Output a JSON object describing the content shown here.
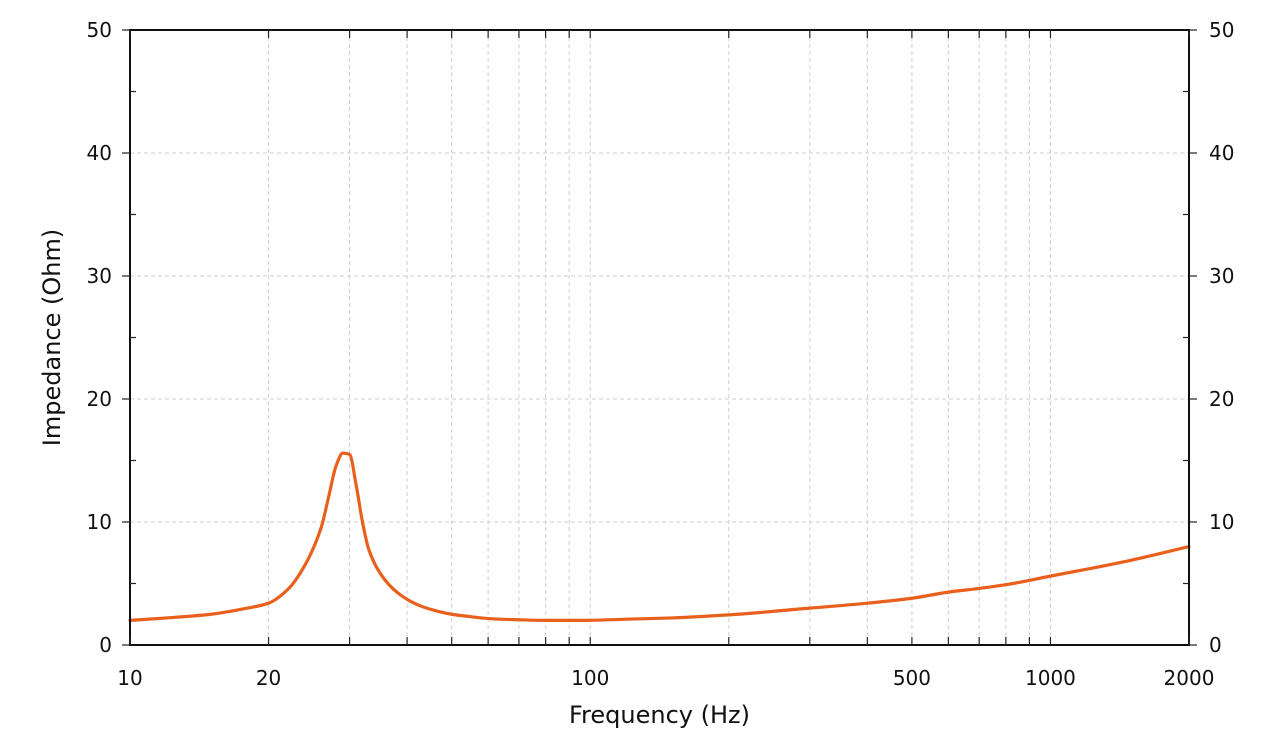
{
  "chart_data": {
    "type": "line",
    "title": "",
    "xlabel": "Frequency (Hz)",
    "ylabel": "Impedance (Ohm)",
    "x_scale": "log",
    "xlim": [
      10,
      2000
    ],
    "ylim": [
      0,
      50
    ],
    "grid": true,
    "x_tick_labels": [
      {
        "value": 10,
        "label": "10"
      },
      {
        "value": 20,
        "label": "20"
      },
      {
        "value": 100,
        "label": "100"
      },
      {
        "value": 500,
        "label": "500"
      },
      {
        "value": 1000,
        "label": "1000"
      },
      {
        "value": 2000,
        "label": "2000"
      }
    ],
    "x_minor_grid": [
      30,
      40,
      50,
      60,
      70,
      80,
      90,
      200,
      300,
      400,
      600,
      700,
      800,
      900
    ],
    "y_ticks": [
      0,
      10,
      20,
      30,
      40,
      50
    ],
    "y_tick_labels": [
      "0",
      "10",
      "20",
      "30",
      "40",
      "50"
    ],
    "y_minor_ticks": [
      5,
      15,
      25,
      35,
      45
    ],
    "series": [
      {
        "color": "#e8601c",
        "x": [
          10,
          12,
          15,
          18,
          20,
          22,
          24,
          26,
          27,
          28,
          29,
          30,
          31,
          32,
          33,
          35,
          38,
          42,
          46,
          50,
          55,
          60,
          70,
          80,
          95,
          120,
          150,
          200,
          300,
          400,
          500,
          600,
          700,
          800,
          1000,
          1500,
          2000
        ],
        "y": [
          2.0,
          2.2,
          2.5,
          3.0,
          3.4,
          4.5,
          6.5,
          9.5,
          12.0,
          14.5,
          15.6,
          15.5,
          13.0,
          10.0,
          7.8,
          5.8,
          4.3,
          3.3,
          2.8,
          2.5,
          2.3,
          2.15,
          2.05,
          2.0,
          2.0,
          2.1,
          2.2,
          2.45,
          3.0,
          3.4,
          3.8,
          4.3,
          4.6,
          4.9,
          5.6,
          6.9,
          8.0
        ]
      }
    ]
  }
}
